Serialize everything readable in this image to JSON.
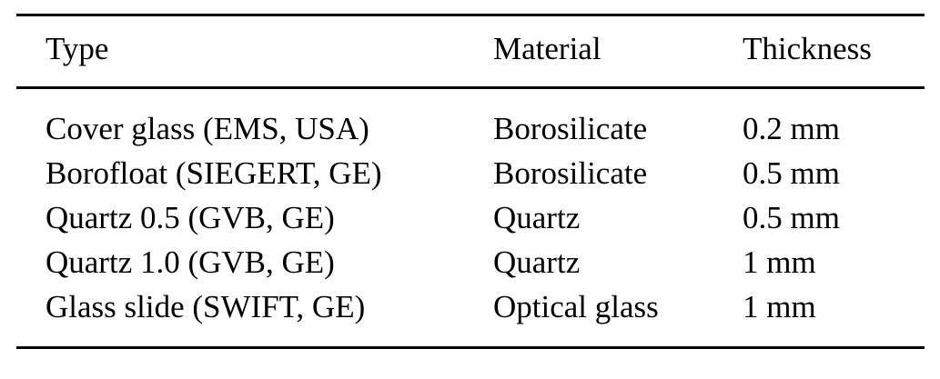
{
  "table": {
    "columns": [
      "Type",
      "Material",
      "Thickness"
    ],
    "rows": [
      {
        "type": "Cover glass (EMS, USA)",
        "material": "Borosilicate",
        "thickness": "0.2 mm"
      },
      {
        "type": "Borofloat (SIEGERT, GE)",
        "material": "Borosilicate",
        "thickness": "0.5 mm"
      },
      {
        "type": "Quartz 0.5 (GVB, GE)",
        "material": "Quartz",
        "thickness": "0.5 mm"
      },
      {
        "type": "Quartz 1.0 (GVB, GE)",
        "material": "Quartz",
        "thickness": "1 mm"
      },
      {
        "type": "Glass slide (SWIFT, GE)",
        "material": "Optical glass",
        "thickness": "1 mm"
      }
    ],
    "style": {
      "rule_color": "#000000",
      "text_color": "#000000",
      "background": "#ffffff"
    }
  }
}
